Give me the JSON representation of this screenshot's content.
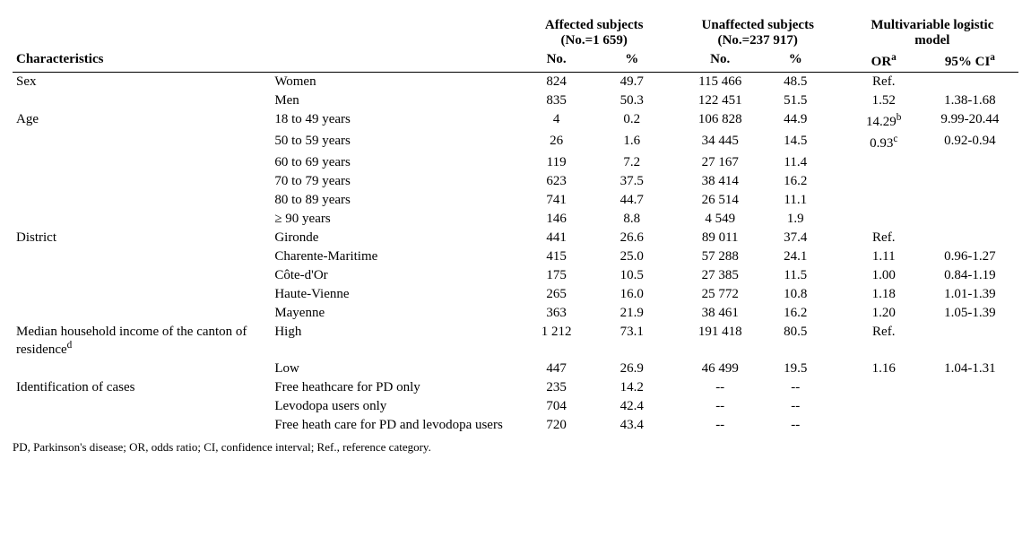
{
  "header": {
    "affected_label": "Affected subjects",
    "affected_n": "(No.=1 659)",
    "unaffected_label": "Unaffected subjects",
    "unaffected_n": "(No.=237 917)",
    "model_label_l1": "Multivariable logistic",
    "model_label_l2": "model",
    "characteristics": "Characteristics",
    "no": "No.",
    "pct": "%",
    "or_html": "OR<sup>a</sup>",
    "ci_html": "95% CI<sup>a</sup>"
  },
  "groups": [
    {
      "label": "Sex",
      "rows": [
        {
          "level": "Women",
          "a_no": "824",
          "a_pct": "49.7",
          "u_no": "115 466",
          "u_pct": "48.5",
          "or": "Ref.",
          "ci": ""
        },
        {
          "level": "Men",
          "a_no": "835",
          "a_pct": "50.3",
          "u_no": "122 451",
          "u_pct": "51.5",
          "or": "1.52",
          "ci": "1.38-1.68"
        }
      ]
    },
    {
      "label": "Age",
      "rows": [
        {
          "level": "18 to 49 years",
          "a_no": "4",
          "a_pct": "0.2",
          "u_no": "106 828",
          "u_pct": "44.9",
          "or_html": "14.29<sup>b</sup>",
          "ci": "9.99-20.44"
        },
        {
          "level": "50 to 59 years",
          "a_no": "26",
          "a_pct": "1.6",
          "u_no": "34 445",
          "u_pct": "14.5",
          "or_html": "0.93<sup>c</sup>",
          "ci": "0.92-0.94"
        },
        {
          "level": "60 to 69 years",
          "a_no": "119",
          "a_pct": "7.2",
          "u_no": "27 167",
          "u_pct": "11.4",
          "or": "",
          "ci": ""
        },
        {
          "level": "70 to 79 years",
          "a_no": "623",
          "a_pct": "37.5",
          "u_no": "38 414",
          "u_pct": "16.2",
          "or": "",
          "ci": ""
        },
        {
          "level": "80 to 89 years",
          "a_no": "741",
          "a_pct": "44.7",
          "u_no": "26 514",
          "u_pct": "11.1",
          "or": "",
          "ci": ""
        },
        {
          "level": "≥ 90 years",
          "a_no": "146",
          "a_pct": "8.8",
          "u_no": "4 549",
          "u_pct": "1.9",
          "or": "",
          "ci": ""
        }
      ]
    },
    {
      "label": "District",
      "rows": [
        {
          "level": "Gironde",
          "a_no": "441",
          "a_pct": "26.6",
          "u_no": "89 011",
          "u_pct": "37.4",
          "or": "Ref.",
          "ci": ""
        },
        {
          "level": "Charente-Maritime",
          "a_no": "415",
          "a_pct": "25.0",
          "u_no": "57 288",
          "u_pct": "24.1",
          "or": "1.11",
          "ci": "0.96-1.27"
        },
        {
          "level": "Côte-d'Or",
          "a_no": "175",
          "a_pct": "10.5",
          "u_no": "27 385",
          "u_pct": "11.5",
          "or": "1.00",
          "ci": "0.84-1.19"
        },
        {
          "level": "Haute-Vienne",
          "a_no": "265",
          "a_pct": "16.0",
          "u_no": "25 772",
          "u_pct": "10.8",
          "or": "1.18",
          "ci": "1.01-1.39"
        },
        {
          "level": "Mayenne",
          "a_no": "363",
          "a_pct": "21.9",
          "u_no": "38 461",
          "u_pct": "16.2",
          "or": "1.20",
          "ci": "1.05-1.39"
        }
      ]
    },
    {
      "label_html": "Median household income of the canton of residence<sup>d</sup>",
      "rows": [
        {
          "level": "High",
          "a_no": "1 212",
          "a_pct": "73.1",
          "u_no": "191 418",
          "u_pct": "80.5",
          "or": "Ref.",
          "ci": ""
        },
        {
          "level": "Low",
          "a_no": "447",
          "a_pct": "26.9",
          "u_no": "46 499",
          "u_pct": "19.5",
          "or": "1.16",
          "ci": "1.04-1.31"
        }
      ]
    },
    {
      "label": "Identification of cases",
      "rows": [
        {
          "level": "Free heathcare for PD only",
          "a_no": "235",
          "a_pct": "14.2",
          "u_no": "--",
          "u_pct": "--",
          "or": "",
          "ci": ""
        },
        {
          "level": "Levodopa users only",
          "a_no": "704",
          "a_pct": "42.4",
          "u_no": "--",
          "u_pct": "--",
          "or": "",
          "ci": ""
        },
        {
          "level": "Free heath care for PD and levodopa users",
          "a_no": "720",
          "a_pct": "43.4",
          "u_no": "--",
          "u_pct": "--",
          "or": "",
          "ci": ""
        }
      ]
    }
  ],
  "footnote": "PD, Parkinson's disease; OR, odds ratio; CI, confidence interval; Ref., reference category."
}
